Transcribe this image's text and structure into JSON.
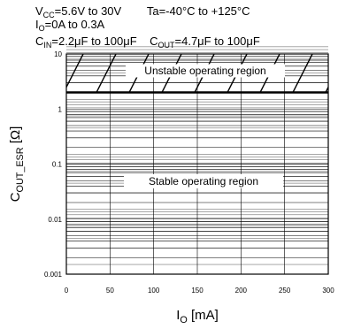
{
  "chart_data": {
    "type": "line",
    "y_scale": "log",
    "xlim": [
      0,
      300
    ],
    "ylim": [
      0.001,
      10
    ],
    "x_ticks": [
      "0",
      "50",
      "100",
      "150",
      "200",
      "250",
      "300"
    ],
    "y_ticks": [
      "0.001",
      "0.01",
      "0.1",
      "1",
      "10"
    ],
    "x_label": {
      "main": "I",
      "sub": "O",
      "tail": " [mA]"
    },
    "y_label": {
      "main": "C",
      "sub": "OUT_ESR",
      "tail": " [Ω]"
    },
    "stability_boundary": {
      "x": [
        0,
        300
      ],
      "y": [
        2,
        2
      ]
    },
    "regions": [
      {
        "name": "Unstable operating region",
        "y_range": [
          2,
          10
        ]
      },
      {
        "name": "Stable operating region",
        "y_range": [
          0.001,
          2
        ]
      }
    ],
    "grid": true
  },
  "conditions": [
    {
      "parts": [
        {
          "t": "V"
        },
        {
          "t": "CC",
          "sub": true
        },
        {
          "t": "=5.6V to 30V"
        },
        {
          "t": "        Ta=-40°C to +125°C"
        }
      ]
    },
    {
      "parts": [
        {
          "t": "I"
        },
        {
          "t": "O",
          "sub": true
        },
        {
          "t": "=0A to 0.3A"
        }
      ]
    },
    {
      "parts": [
        {
          "t": "C"
        },
        {
          "t": "IN",
          "sub": true
        },
        {
          "t": "=2.2μF to 100μF"
        },
        {
          "t": "    C"
        },
        {
          "t": "OUT",
          "sub": true
        },
        {
          "t": "=4.7μF to 100μF"
        }
      ]
    }
  ],
  "style": {
    "line_color": "#000000",
    "background": "#ffffff"
  }
}
